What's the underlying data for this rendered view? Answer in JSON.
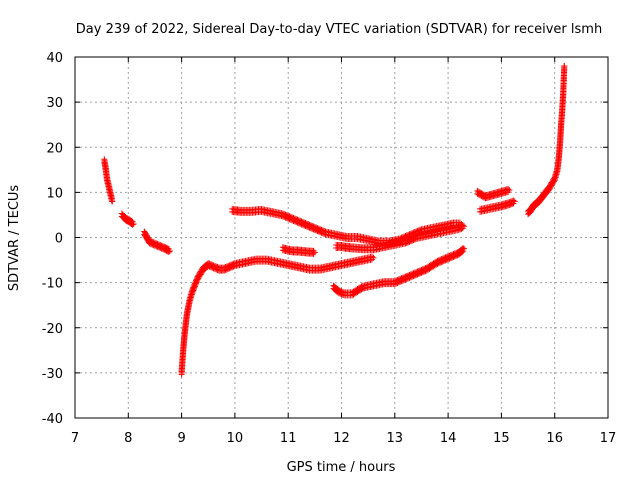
{
  "chart_data": {
    "type": "scatter",
    "title": "Day 239 of 2022, Sidereal Day-to-day VTEC variation (SDTVAR) for receiver lsmh",
    "xlabel": "GPS time / hours",
    "ylabel": "SDTVAR / TECUs",
    "xlim": [
      7,
      17
    ],
    "ylim": [
      -40,
      40
    ],
    "xticks": [
      "7",
      "8",
      "9",
      "10",
      "11",
      "12",
      "13",
      "14",
      "15",
      "16",
      "17"
    ],
    "yticks": [
      "-40",
      "-30",
      "-20",
      "-10",
      "0",
      "10",
      "20",
      "30",
      "40"
    ],
    "grid": true,
    "marker": "+",
    "color": "#ff0000",
    "series": [
      {
        "name": "arc1",
        "x": [
          7.55,
          7.58,
          7.6,
          7.62,
          7.64,
          7.66,
          7.68,
          7.7
        ],
        "y": [
          17,
          15,
          13,
          12,
          11,
          10,
          9,
          8
        ]
      },
      {
        "name": "arc2",
        "x": [
          7.88,
          7.92,
          7.96,
          8.0,
          8.04,
          8.1
        ],
        "y": [
          5,
          4.5,
          4,
          3.8,
          3.5,
          3
        ]
      },
      {
        "name": "arc3",
        "x": [
          8.3,
          8.35,
          8.4,
          8.5,
          8.6,
          8.7,
          8.78
        ],
        "y": [
          1,
          0,
          -1,
          -1.5,
          -2,
          -2.5,
          -3
        ]
      },
      {
        "name": "arc4",
        "x": [
          9.0,
          9.03,
          9.06,
          9.1,
          9.15,
          9.2,
          9.3,
          9.4,
          9.5,
          9.6,
          9.7,
          9.8,
          9.9,
          10.0,
          10.2,
          10.4,
          10.6,
          10.8,
          11.0,
          11.2,
          11.4,
          11.6,
          11.8,
          12.0,
          12.2,
          12.4,
          12.6
        ],
        "y": [
          -30,
          -25,
          -21,
          -17,
          -14,
          -12,
          -9,
          -7,
          -6,
          -6.5,
          -7,
          -7,
          -6.5,
          -6,
          -5.5,
          -5,
          -5,
          -5.5,
          -6,
          -6.5,
          -7,
          -7,
          -6.5,
          -6,
          -5.5,
          -5,
          -4.5
        ]
      },
      {
        "name": "arc5",
        "x": [
          9.95,
          10.1,
          10.3,
          10.5,
          10.7,
          10.9,
          11.1,
          11.3,
          11.5,
          11.7,
          11.9,
          12.1,
          12.3,
          12.5,
          12.7,
          12.9,
          13.1,
          13.3,
          13.5,
          13.7,
          13.9,
          14.1,
          14.25
        ],
        "y": [
          6,
          5.8,
          5.8,
          6,
          5.5,
          5,
          4,
          3,
          2,
          1,
          0.5,
          0,
          0,
          -0.5,
          -1,
          -1,
          -0.5,
          0.5,
          1.5,
          2,
          2.5,
          3,
          3
        ]
      },
      {
        "name": "arc6",
        "x": [
          10.9,
          11.0,
          11.1,
          11.2,
          11.35,
          11.5
        ],
        "y": [
          -2.5,
          -2.8,
          -3,
          -3,
          -3.2,
          -3.3
        ]
      },
      {
        "name": "arc7",
        "x": [
          11.9,
          12.0,
          12.1,
          12.2,
          12.4,
          12.6,
          12.8,
          13.0,
          13.2,
          13.4,
          13.6,
          13.8,
          14.0,
          14.2,
          14.3
        ],
        "y": [
          -2,
          -2,
          -2.2,
          -2.3,
          -2.5,
          -2.5,
          -2,
          -1.5,
          -1,
          0,
          0.5,
          1,
          1.5,
          2,
          2.5
        ]
      },
      {
        "name": "arc8",
        "x": [
          11.85,
          11.95,
          12.05,
          12.2,
          12.4,
          12.6,
          12.8,
          13.0,
          13.2,
          13.4,
          13.6,
          13.8,
          14.0,
          14.2,
          14.3
        ],
        "y": [
          -11,
          -12,
          -12.5,
          -12.5,
          -11,
          -10.5,
          -10,
          -10,
          -9,
          -8,
          -7,
          -5.5,
          -4.5,
          -3.5,
          -2.5
        ]
      },
      {
        "name": "arc9",
        "x": [
          14.55,
          14.7,
          14.85,
          15.0,
          15.15
        ],
        "y": [
          10,
          9,
          9.5,
          10,
          10.5
        ]
      },
      {
        "name": "arc10",
        "x": [
          14.6,
          14.8,
          15.0,
          15.15,
          15.25
        ],
        "y": [
          6,
          6.5,
          7,
          7.5,
          8
        ]
      },
      {
        "name": "arc11",
        "x": [
          15.5,
          15.55,
          15.6,
          15.7,
          15.8,
          15.9,
          16.0,
          16.05,
          16.08,
          16.1,
          16.12,
          16.14,
          16.16,
          16.18
        ],
        "y": [
          5.5,
          6,
          7,
          8,
          9.5,
          11,
          13,
          15,
          18,
          21,
          25,
          28,
          32,
          38
        ]
      }
    ]
  }
}
